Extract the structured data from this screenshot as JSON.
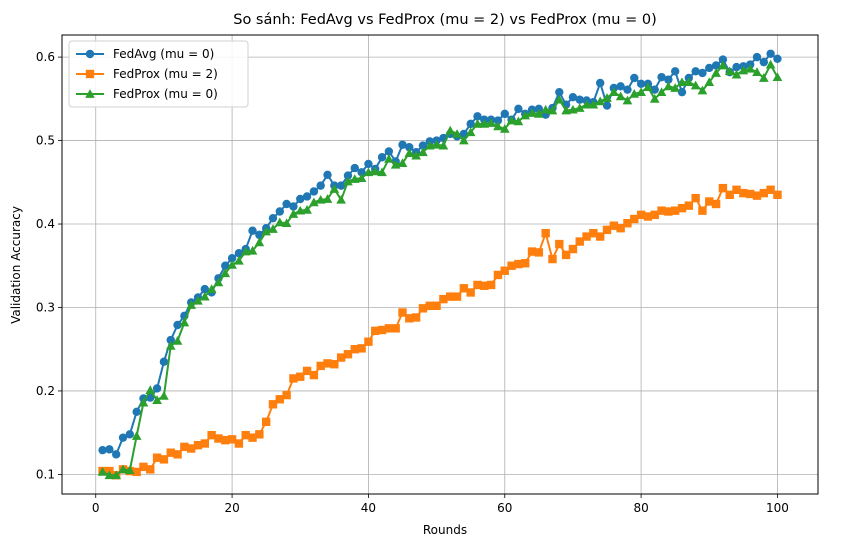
{
  "chart_data": {
    "type": "line",
    "title": "So sánh: FedAvg vs FedProx (mu = 2) vs FedProx (mu = 0)",
    "xlabel": "Rounds",
    "ylabel": "Validation Accuracy",
    "xlim": [
      -4.95,
      105.95
    ],
    "ylim": [
      0.0765,
      0.6265
    ],
    "xticks": [
      0,
      20,
      40,
      60,
      80,
      100
    ],
    "yticks": [
      0.1,
      0.2,
      0.3,
      0.4,
      0.5,
      0.6
    ],
    "xtick_labels": [
      "0",
      "20",
      "40",
      "60",
      "80",
      "100"
    ],
    "ytick_labels": [
      "0.1",
      "0.2",
      "0.3",
      "0.4",
      "0.5",
      "0.6"
    ],
    "grid": true,
    "legend_position": "top-left",
    "x": [
      1,
      2,
      3,
      4,
      5,
      6,
      7,
      8,
      9,
      10,
      11,
      12,
      13,
      14,
      15,
      16,
      17,
      18,
      19,
      20,
      21,
      22,
      23,
      24,
      25,
      26,
      27,
      28,
      29,
      30,
      31,
      32,
      33,
      34,
      35,
      36,
      37,
      38,
      39,
      40,
      41,
      42,
      43,
      44,
      45,
      46,
      47,
      48,
      49,
      50,
      51,
      52,
      53,
      54,
      55,
      56,
      57,
      58,
      59,
      60,
      61,
      62,
      63,
      64,
      65,
      66,
      67,
      68,
      69,
      70,
      71,
      72,
      73,
      74,
      75,
      76,
      77,
      78,
      79,
      80,
      81,
      82,
      83,
      84,
      85,
      86,
      87,
      88,
      89,
      90,
      91,
      92,
      93,
      94,
      95,
      96,
      97,
      98,
      99,
      100
    ],
    "series": [
      {
        "name": "FedAvg (mu = 0)",
        "color": "#1f77b4",
        "marker": "circle",
        "values": [
          0.129,
          0.13,
          0.124,
          0.144,
          0.148,
          0.175,
          0.191,
          0.192,
          0.203,
          0.235,
          0.261,
          0.279,
          0.29,
          0.306,
          0.312,
          0.322,
          0.318,
          0.335,
          0.35,
          0.359,
          0.365,
          0.37,
          0.392,
          0.387,
          0.395,
          0.407,
          0.415,
          0.424,
          0.421,
          0.43,
          0.433,
          0.439,
          0.446,
          0.459,
          0.446,
          0.446,
          0.458,
          0.467,
          0.462,
          0.472,
          0.466,
          0.48,
          0.487,
          0.475,
          0.495,
          0.492,
          0.486,
          0.494,
          0.499,
          0.5,
          0.503,
          0.508,
          0.505,
          0.508,
          0.52,
          0.529,
          0.525,
          0.525,
          0.524,
          0.532,
          0.525,
          0.538,
          0.532,
          0.537,
          0.538,
          0.531,
          0.539,
          0.558,
          0.543,
          0.552,
          0.549,
          0.548,
          0.546,
          0.569,
          0.542,
          0.563,
          0.565,
          0.561,
          0.575,
          0.568,
          0.568,
          0.561,
          0.576,
          0.573,
          0.583,
          0.558,
          0.575,
          0.583,
          0.581,
          0.587,
          0.59,
          0.597,
          0.582,
          0.588,
          0.589,
          0.591,
          0.6,
          0.594,
          0.604,
          0.598
        ]
      },
      {
        "name": "FedProx (mu = 2)",
        "color": "#ff7f0e",
        "marker": "square",
        "values": [
          0.104,
          0.104,
          0.099,
          0.106,
          0.104,
          0.103,
          0.109,
          0.106,
          0.12,
          0.118,
          0.126,
          0.124,
          0.133,
          0.131,
          0.135,
          0.137,
          0.147,
          0.143,
          0.141,
          0.142,
          0.137,
          0.147,
          0.144,
          0.148,
          0.163,
          0.184,
          0.19,
          0.195,
          0.215,
          0.217,
          0.224,
          0.219,
          0.23,
          0.233,
          0.232,
          0.24,
          0.244,
          0.25,
          0.251,
          0.259,
          0.272,
          0.273,
          0.275,
          0.275,
          0.294,
          0.287,
          0.288,
          0.299,
          0.302,
          0.302,
          0.31,
          0.313,
          0.313,
          0.323,
          0.318,
          0.327,
          0.326,
          0.327,
          0.339,
          0.344,
          0.35,
          0.352,
          0.353,
          0.367,
          0.366,
          0.389,
          0.358,
          0.376,
          0.363,
          0.37,
          0.379,
          0.385,
          0.389,
          0.385,
          0.393,
          0.398,
          0.395,
          0.401,
          0.406,
          0.411,
          0.409,
          0.411,
          0.416,
          0.415,
          0.416,
          0.419,
          0.422,
          0.431,
          0.416,
          0.427,
          0.424,
          0.443,
          0.435,
          0.441,
          0.437,
          0.436,
          0.434,
          0.437,
          0.441,
          0.435
        ]
      },
      {
        "name": "FedProx (mu = 0)",
        "color": "#2ca02c",
        "marker": "triangle",
        "values": [
          0.103,
          0.099,
          0.099,
          0.106,
          0.105,
          0.146,
          0.186,
          0.201,
          0.189,
          0.194,
          0.254,
          0.26,
          0.282,
          0.303,
          0.308,
          0.313,
          0.322,
          0.33,
          0.341,
          0.351,
          0.356,
          0.367,
          0.368,
          0.378,
          0.391,
          0.394,
          0.402,
          0.401,
          0.412,
          0.416,
          0.417,
          0.426,
          0.429,
          0.43,
          0.442,
          0.429,
          0.451,
          0.454,
          0.455,
          0.462,
          0.463,
          0.462,
          0.478,
          0.471,
          0.473,
          0.485,
          0.482,
          0.486,
          0.494,
          0.495,
          0.494,
          0.512,
          0.508,
          0.5,
          0.51,
          0.52,
          0.52,
          0.521,
          0.517,
          0.514,
          0.524,
          0.523,
          0.53,
          0.533,
          0.532,
          0.537,
          0.536,
          0.549,
          0.536,
          0.537,
          0.539,
          0.543,
          0.543,
          0.547,
          0.551,
          0.558,
          0.553,
          0.548,
          0.556,
          0.558,
          0.564,
          0.55,
          0.558,
          0.565,
          0.563,
          0.57,
          0.57,
          0.566,
          0.56,
          0.57,
          0.581,
          0.59,
          0.583,
          0.579,
          0.584,
          0.586,
          0.582,
          0.575,
          0.591,
          0.576
        ]
      }
    ]
  }
}
